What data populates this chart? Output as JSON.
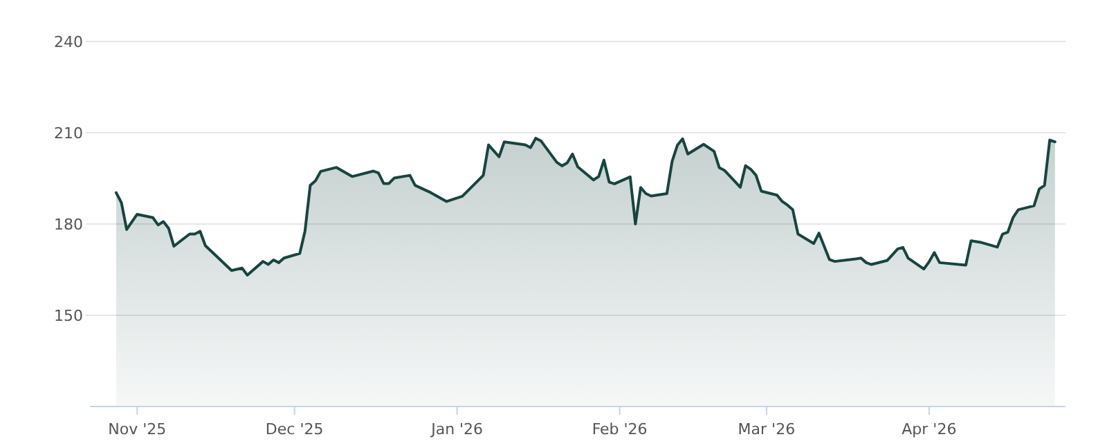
{
  "chart_data": {
    "type": "area",
    "grid": "y",
    "x": [
      "2025-10-28",
      "2025-10-29",
      "2025-10-30",
      "2025-11-01",
      "2025-11-04",
      "2025-11-05",
      "2025-11-06",
      "2025-11-07",
      "2025-11-08",
      "2025-11-11",
      "2025-11-12",
      "2025-11-13",
      "2025-11-14",
      "2025-11-19",
      "2025-11-21",
      "2025-11-22",
      "2025-11-25",
      "2025-11-26",
      "2025-11-27",
      "2025-11-28",
      "2025-11-29",
      "2025-12-02",
      "2025-12-03",
      "2025-12-04",
      "2025-12-05",
      "2025-12-06",
      "2025-12-09",
      "2025-12-12",
      "2025-12-16",
      "2025-12-17",
      "2025-12-18",
      "2025-12-19",
      "2025-12-20",
      "2025-12-23",
      "2025-12-24",
      "2025-12-27",
      "2025-12-30",
      "2026-01-02",
      "2026-01-06",
      "2026-01-07",
      "2026-01-09",
      "2026-01-10",
      "2026-01-14",
      "2026-01-15",
      "2026-01-16",
      "2026-01-17",
      "2026-01-20",
      "2026-01-21",
      "2026-01-22",
      "2026-01-23",
      "2026-01-24",
      "2026-01-27",
      "2026-01-28",
      "2026-01-29",
      "2026-01-30",
      "2026-01-31",
      "2026-02-03",
      "2026-02-04",
      "2026-02-05",
      "2026-02-06",
      "2026-02-07",
      "2026-02-10",
      "2026-02-11",
      "2026-02-12",
      "2026-02-13",
      "2026-02-14",
      "2026-02-17",
      "2026-02-19",
      "2026-02-20",
      "2026-02-21",
      "2026-02-24",
      "2026-02-25",
      "2026-02-26",
      "2026-02-27",
      "2026-02-28",
      "2026-03-03",
      "2026-03-04",
      "2026-03-05",
      "2026-03-06",
      "2026-03-07",
      "2026-03-10",
      "2026-03-11",
      "2026-03-13",
      "2026-03-14",
      "2026-03-18",
      "2026-03-19",
      "2026-03-20",
      "2026-03-21",
      "2026-03-24",
      "2026-03-26",
      "2026-03-27",
      "2026-03-28",
      "2026-03-31",
      "2026-04-01",
      "2026-04-02",
      "2026-04-03",
      "2026-04-08",
      "2026-04-09",
      "2026-04-11",
      "2026-04-14",
      "2026-04-15",
      "2026-04-16",
      "2026-04-17",
      "2026-04-18",
      "2026-04-21",
      "2026-04-22",
      "2026-04-23",
      "2026-04-24",
      "2026-04-25"
    ],
    "series": [
      {
        "color": "#174540",
        "values": [
          190.3,
          187,
          178.2,
          183.2,
          182.1,
          179.7,
          180.8,
          178.6,
          172.7,
          176.7,
          176.7,
          177.6,
          172.9,
          164.7,
          165.5,
          163.2,
          167.7,
          166.7,
          168.2,
          167.3,
          168.8,
          170.3,
          177.6,
          192.7,
          194.2,
          197.3,
          198.6,
          195.6,
          197.4,
          196.8,
          193.3,
          193.3,
          195.1,
          196,
          192.7,
          190.3,
          187.4,
          189.1,
          196,
          206,
          202.1,
          207,
          206,
          205.1,
          208.2,
          207.3,
          200.3,
          199.1,
          200.1,
          203,
          198.8,
          194.5,
          195.6,
          201,
          193.8,
          193.2,
          195.5,
          180,
          192,
          190,
          189.2,
          190,
          200.6,
          205.9,
          208,
          203,
          206.2,
          203.9,
          198.5,
          197.6,
          192.1,
          199.2,
          198,
          196,
          190.8,
          189.5,
          187.4,
          186.2,
          184.7,
          176.7,
          173.6,
          177,
          168.3,
          167.7,
          168.5,
          168.8,
          167.3,
          166.7,
          168,
          171.8,
          172.3,
          168.8,
          165.2,
          167.6,
          170.6,
          167.3,
          166.5,
          174.5,
          173.9,
          172.4,
          176.7,
          177.3,
          182.1,
          184.7,
          186,
          191.5,
          192.7,
          207.6,
          207
        ]
      }
    ],
    "xlim": [
      "2025-10-23",
      "2026-04-27"
    ],
    "xticks": [
      {
        "value": "2025-11-01",
        "label": "Nov '25"
      },
      {
        "value": "2025-12-01",
        "label": "Dec '25"
      },
      {
        "value": "2026-01-01",
        "label": "Jan '26"
      },
      {
        "value": "2026-02-01",
        "label": "Feb '26"
      },
      {
        "value": "2026-03-01",
        "label": "Mar '26"
      },
      {
        "value": "2026-04-01",
        "label": "Apr '26"
      }
    ],
    "ylim": [
      120,
      240
    ],
    "yticks": [
      150,
      180,
      210,
      240
    ]
  }
}
